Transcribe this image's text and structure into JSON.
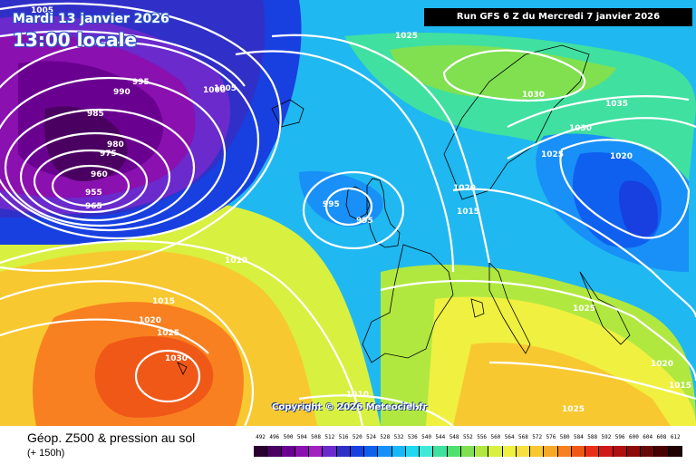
{
  "header": {
    "date": "Mardi 13 janvier 2026",
    "time": "13:00 locale",
    "run": "Run GFS 6 Z du Mercredi 7 janvier 2026"
  },
  "copyright": "Copyright © 2026 Meteociel.fr",
  "footer": {
    "title": "Géop. Z500 & pression au sol",
    "subtitle": "(+ 150h)"
  },
  "legend": {
    "values": [
      "492",
      "496",
      "500",
      "504",
      "508",
      "512",
      "516",
      "520",
      "524",
      "528",
      "532",
      "536",
      "540",
      "544",
      "548",
      "552",
      "556",
      "560",
      "564",
      "568",
      "572",
      "576",
      "580",
      "584",
      "588",
      "592",
      "596",
      "600",
      "604",
      "608",
      "612"
    ],
    "colors": [
      "#2a0030",
      "#4a0060",
      "#6a0090",
      "#8a10b0",
      "#a020c0",
      "#6a2acc",
      "#3030c8",
      "#1840e0",
      "#1060f0",
      "#1890f8",
      "#18b8f8",
      "#20d8f0",
      "#40e8d8",
      "#40e0a0",
      "#50e070",
      "#80e050",
      "#b0e840",
      "#d8f040",
      "#f0f040",
      "#f8e040",
      "#f8c830",
      "#f8a828",
      "#f88020",
      "#f05818",
      "#e83018",
      "#d01818",
      "#b01010",
      "#900808",
      "#680808",
      "#480000",
      "#200000"
    ]
  },
  "isobars": [
    "1005",
    "995",
    "990",
    "1000",
    "985",
    "980",
    "975",
    "960",
    "955",
    "965",
    "1005",
    "1025",
    "1030",
    "1035",
    "1030",
    "1025",
    "1020",
    "995",
    "995",
    "1020",
    "1015",
    "1010",
    "1015",
    "1020",
    "1025",
    "1030",
    "1025",
    "1010",
    "1020",
    "1015",
    "1025"
  ]
}
